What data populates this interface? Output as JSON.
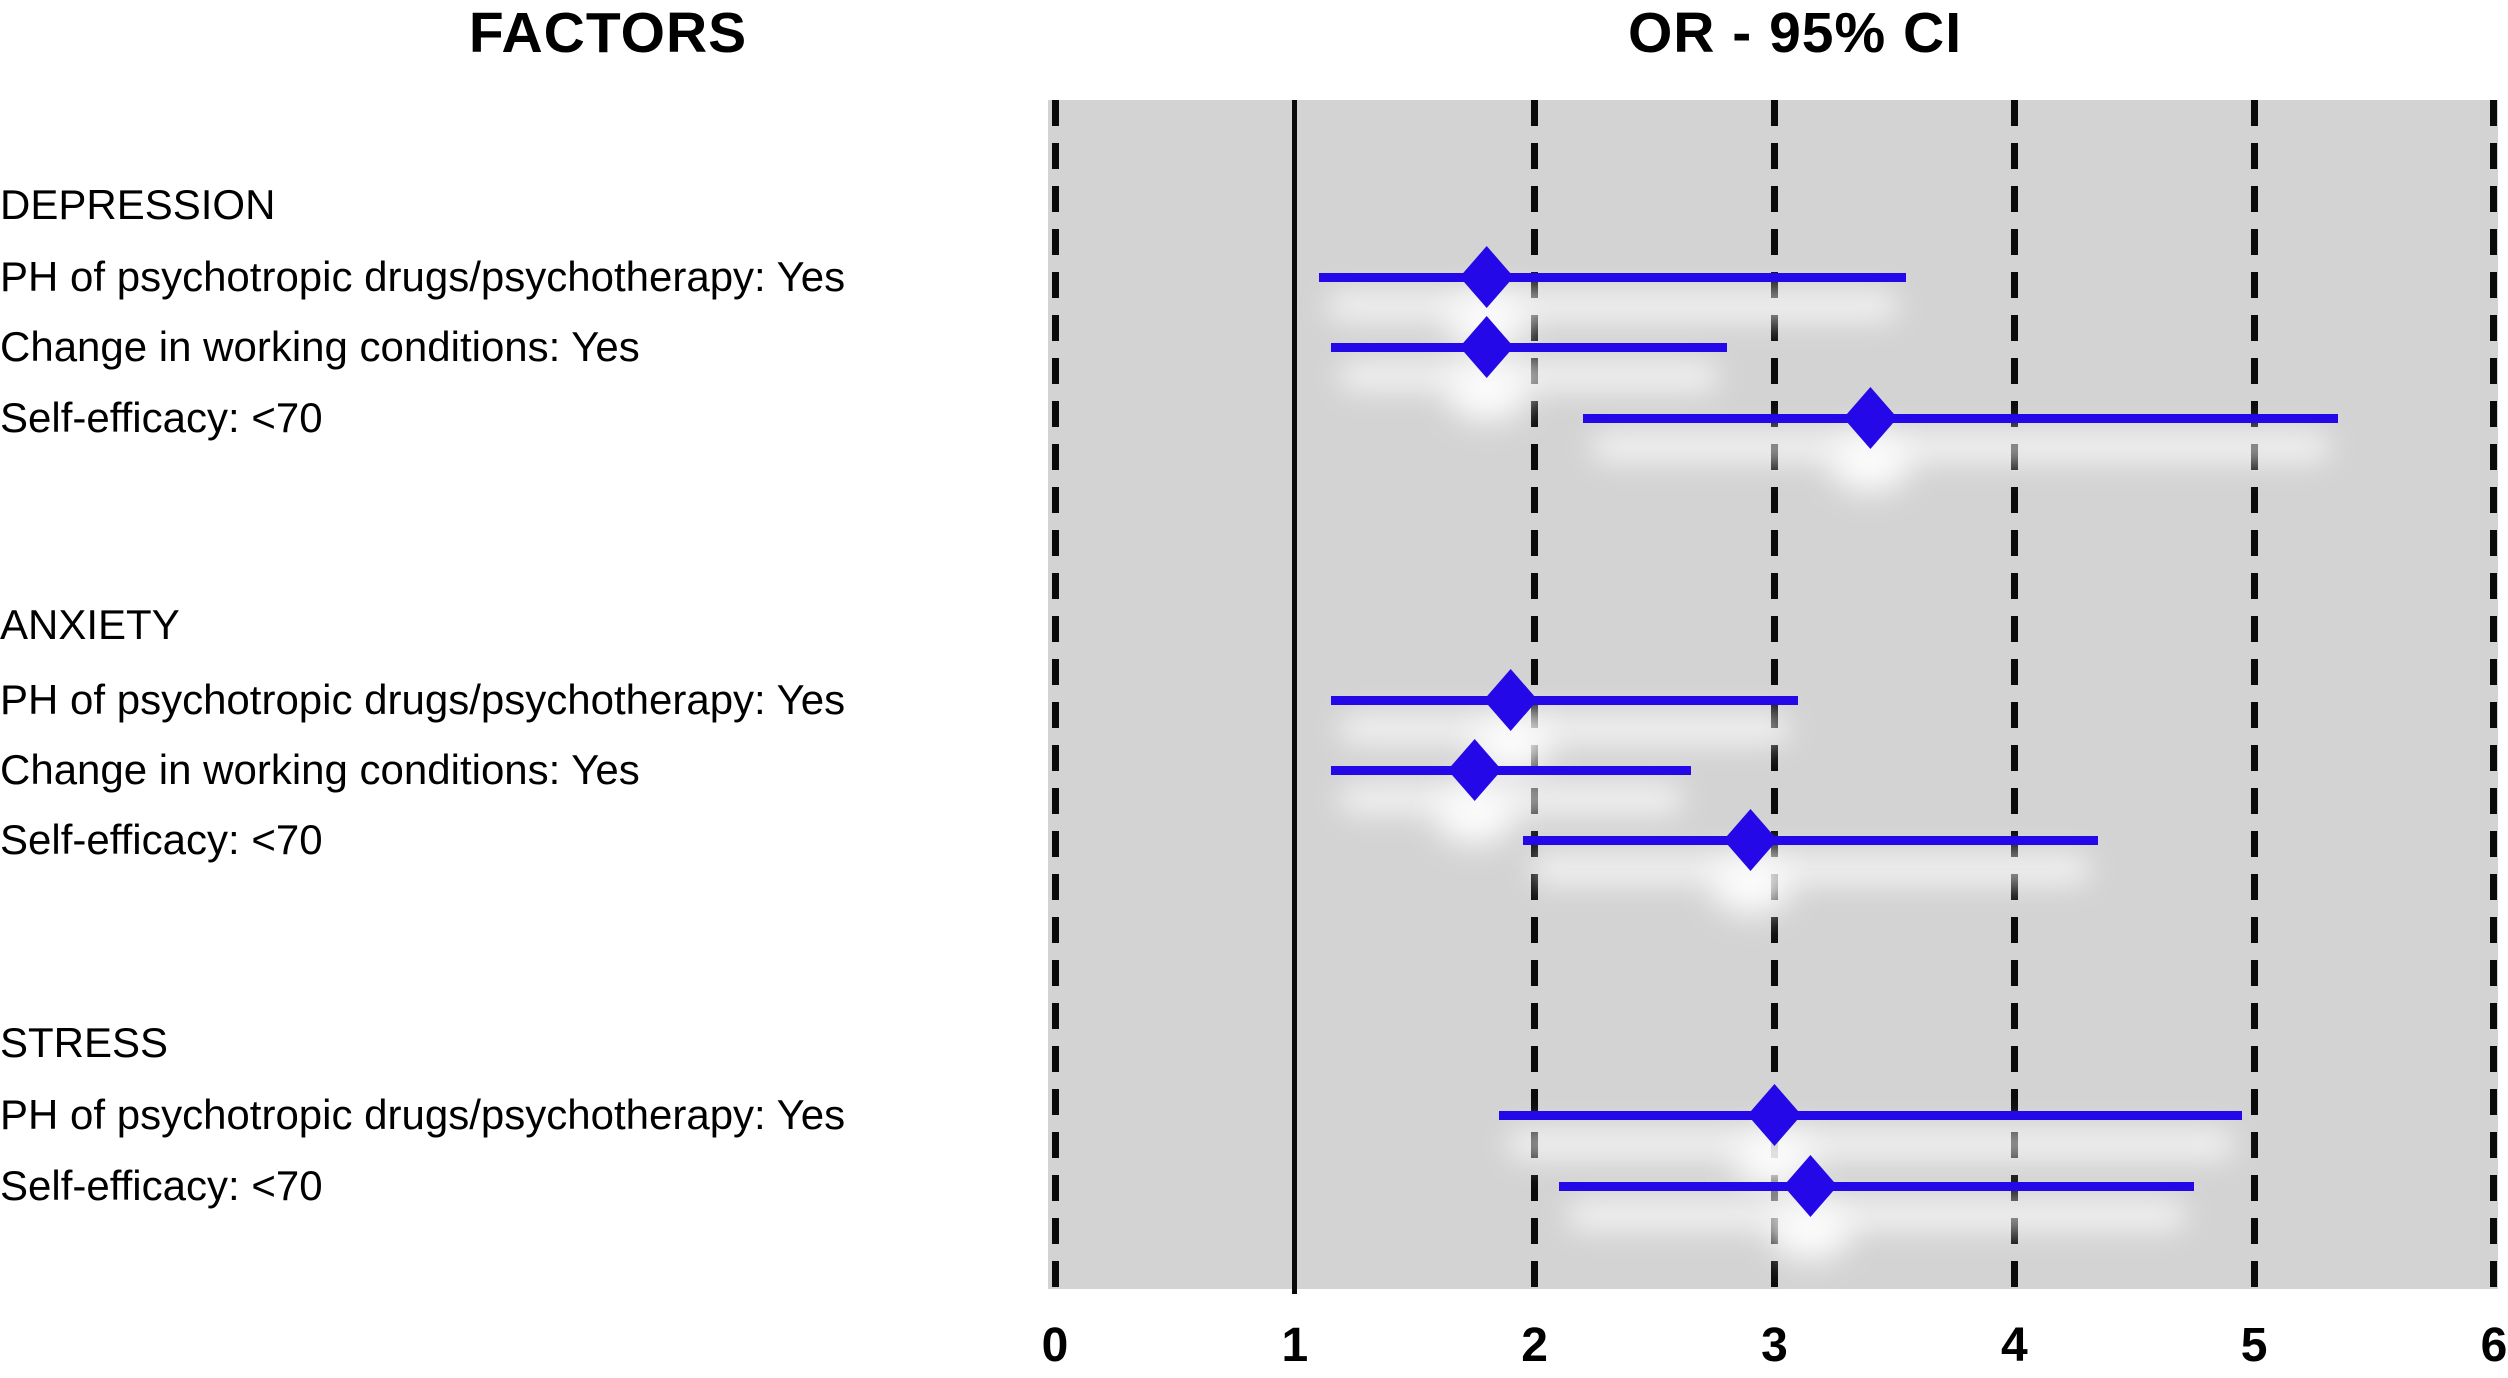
{
  "chart_data": {
    "type": "forest",
    "column_titles": {
      "factors": "FACTORS",
      "estimates": "OR - 95% CI"
    },
    "x_axis": {
      "min": 0,
      "max": 6,
      "ticks": [
        "0",
        "1",
        "2",
        "3",
        "4",
        "5",
        "6"
      ],
      "reference_line": 1,
      "gridlines": "dashed-vertical"
    },
    "marker": {
      "shape": "diamond",
      "color": "#2408e8"
    },
    "plot_background": "#d3d3d3",
    "groups": [
      {
        "group": "DEPRESSION",
        "rows": [
          {
            "factor": "PH of psychotropic drugs/psychotherapy: Yes",
            "or": 1.8,
            "ci_low": 1.1,
            "ci_high": 3.55
          },
          {
            "factor": "Change in working conditions: Yes",
            "or": 1.8,
            "ci_low": 1.15,
            "ci_high": 2.8
          },
          {
            "factor": "Self-efficacy: <70",
            "or": 3.4,
            "ci_low": 2.2,
            "ci_high": 5.35
          }
        ]
      },
      {
        "group": "ANXIETY",
        "rows": [
          {
            "factor": "PH of psychotropic drugs/psychotherapy: Yes",
            "or": 1.9,
            "ci_low": 1.15,
            "ci_high": 3.1
          },
          {
            "factor": "Change in working conditions: Yes",
            "or": 1.75,
            "ci_low": 1.15,
            "ci_high": 2.65
          },
          {
            "factor": "Self-efficacy: <70",
            "or": 2.9,
            "ci_low": 1.95,
            "ci_high": 4.35
          }
        ]
      },
      {
        "group": "STRESS",
        "rows": [
          {
            "factor": "PH of psychotropic drugs/psychotherapy: Yes",
            "or": 3.0,
            "ci_low": 1.85,
            "ci_high": 4.95
          },
          {
            "factor": "Self-efficacy: <70",
            "or": 3.15,
            "ci_low": 2.1,
            "ci_high": 4.75
          }
        ]
      }
    ]
  }
}
